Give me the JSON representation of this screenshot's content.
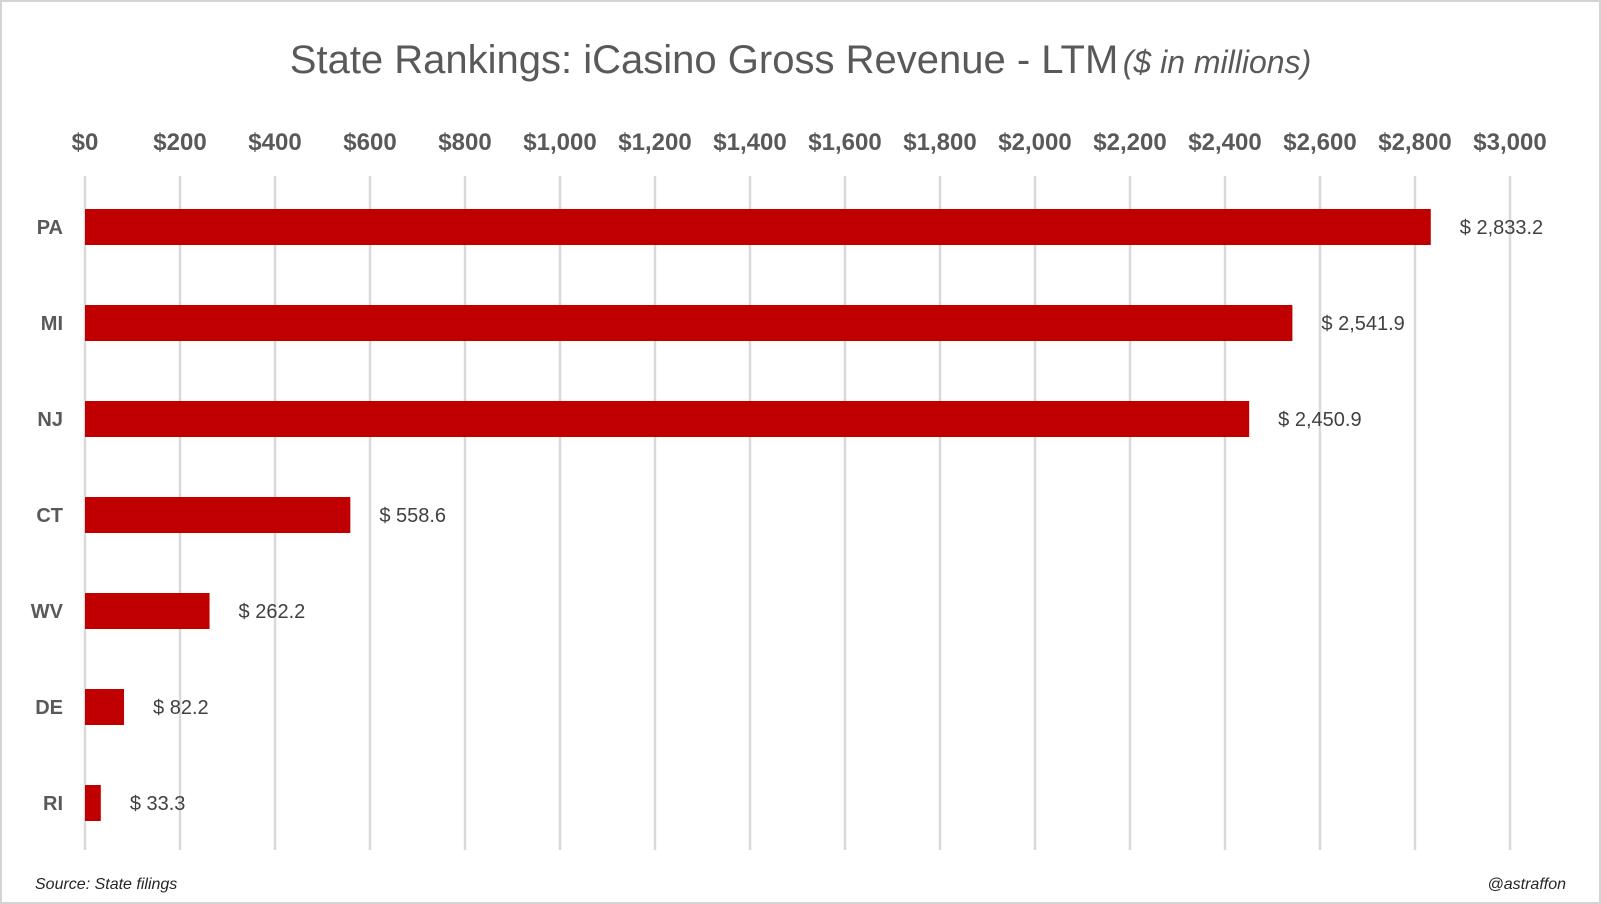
{
  "chart_data": {
    "type": "bar",
    "orientation": "horizontal",
    "title": "State Rankings: iCasino Gross Revenue - LTM",
    "subtitle": "($ in millions)",
    "categories": [
      "PA",
      "MI",
      "NJ",
      "CT",
      "WV",
      "DE",
      "RI"
    ],
    "values": [
      2833.2,
      2541.9,
      2450.9,
      558.6,
      262.2,
      82.2,
      33.3
    ],
    "data_labels": [
      "$ 2,833.2",
      "$ 2,541.9",
      "$ 2,450.9",
      "$ 558.6",
      "$ 262.2",
      "$ 82.2",
      "$ 33.3"
    ],
    "x_ticks": [
      0,
      200,
      400,
      600,
      800,
      1000,
      1200,
      1400,
      1600,
      1800,
      2000,
      2200,
      2400,
      2600,
      2800,
      3000
    ],
    "x_tick_labels": [
      "$0",
      "$200",
      "$400",
      "$600",
      "$800",
      "$1,000",
      "$1,200",
      "$1,400",
      "$1,600",
      "$1,800",
      "$2,000",
      "$2,200",
      "$2,400",
      "$2,600",
      "$2,800",
      "$3,000"
    ],
    "xlim": [
      0,
      3000
    ],
    "x_axis_position": "top",
    "grid": true,
    "bar_color": "#c00000",
    "grid_color": "#d9d9d9",
    "xlabel": "",
    "ylabel": ""
  },
  "footer": {
    "source": "Source: State filings",
    "credit": "@astraffon"
  }
}
